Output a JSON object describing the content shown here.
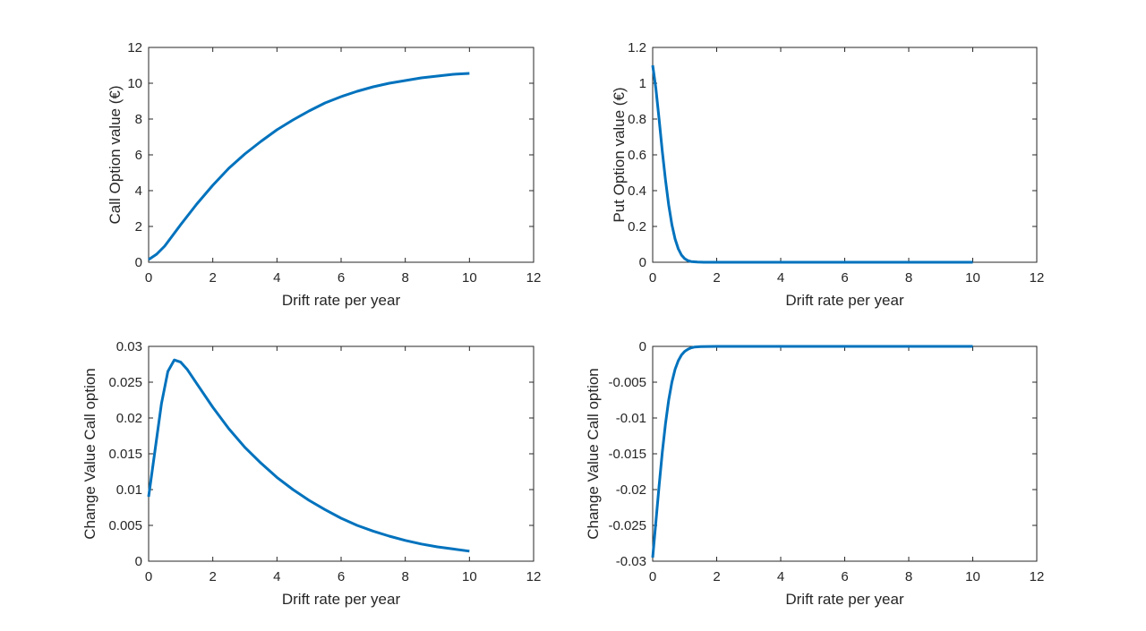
{
  "colors": {
    "line": "#0072BD",
    "axis": "#262626",
    "background": "#ffffff"
  },
  "chart_data": [
    {
      "type": "line",
      "position": "top-left",
      "xlabel": "Drift rate per year",
      "ylabel": "Call Option value (€)",
      "xlim": [
        0,
        12
      ],
      "ylim": [
        0,
        12
      ],
      "xticks": [
        "0",
        "2",
        "4",
        "6",
        "8",
        "10",
        "12"
      ],
      "yticks": [
        "0",
        "2",
        "4",
        "6",
        "8",
        "10",
        "12"
      ],
      "grid": false,
      "series": [
        {
          "x": [
            0,
            0.25,
            0.5,
            0.75,
            1,
            1.5,
            2,
            2.5,
            3,
            3.5,
            4,
            4.5,
            5,
            5.5,
            6,
            6.5,
            7,
            7.5,
            8,
            8.5,
            9,
            9.5,
            10
          ],
          "y": [
            0.15,
            0.45,
            0.9,
            1.5,
            2.1,
            3.25,
            4.3,
            5.25,
            6.05,
            6.75,
            7.4,
            7.95,
            8.45,
            8.9,
            9.25,
            9.55,
            9.8,
            10.0,
            10.15,
            10.3,
            10.4,
            10.5,
            10.55
          ]
        }
      ]
    },
    {
      "type": "line",
      "position": "top-right",
      "xlabel": "Drift rate per year",
      "ylabel": "Put Option value (€)",
      "xlim": [
        0,
        12
      ],
      "ylim": [
        0,
        1.2
      ],
      "xticks": [
        "0",
        "2",
        "4",
        "6",
        "8",
        "10",
        "12"
      ],
      "yticks": [
        "0",
        "0.2",
        "0.4",
        "0.6",
        "0.8",
        "1",
        "1.2"
      ],
      "grid": false,
      "series": [
        {
          "x": [
            0,
            0.1,
            0.2,
            0.3,
            0.4,
            0.5,
            0.6,
            0.7,
            0.8,
            0.9,
            1.0,
            1.1,
            1.2,
            1.4,
            1.6,
            2,
            4,
            6,
            8,
            10
          ],
          "y": [
            1.1,
            0.97,
            0.8,
            0.62,
            0.46,
            0.32,
            0.21,
            0.13,
            0.075,
            0.04,
            0.02,
            0.009,
            0.004,
            0.001,
            0.0003,
            0,
            0,
            0,
            0,
            0
          ]
        }
      ]
    },
    {
      "type": "line",
      "position": "bottom-left",
      "xlabel": "Drift rate per year",
      "ylabel": "Change Value Call option",
      "xlim": [
        0,
        12
      ],
      "ylim": [
        0,
        0.03
      ],
      "xticks": [
        "0",
        "2",
        "4",
        "6",
        "8",
        "10",
        "12"
      ],
      "yticks": [
        "0",
        "0.005",
        "0.01",
        "0.015",
        "0.02",
        "0.025",
        "0.03"
      ],
      "grid": false,
      "series": [
        {
          "x": [
            0,
            0.2,
            0.4,
            0.6,
            0.8,
            1.0,
            1.2,
            1.5,
            2,
            2.5,
            3,
            3.5,
            4,
            4.5,
            5,
            5.5,
            6,
            6.5,
            7,
            7.5,
            8,
            8.5,
            9,
            9.5,
            10
          ],
          "y": [
            0.009,
            0.0155,
            0.022,
            0.0265,
            0.0281,
            0.0278,
            0.0268,
            0.0248,
            0.0215,
            0.0185,
            0.0159,
            0.0137,
            0.0117,
            0.01,
            0.0085,
            0.0072,
            0.006,
            0.005,
            0.0042,
            0.0035,
            0.0029,
            0.0024,
            0.002,
            0.0017,
            0.0014
          ]
        }
      ]
    },
    {
      "type": "line",
      "position": "bottom-right",
      "xlabel": "Drift rate per year",
      "ylabel": "Change Value Call option",
      "xlim": [
        0,
        12
      ],
      "ylim": [
        -0.03,
        0
      ],
      "xticks": [
        "0",
        "2",
        "4",
        "6",
        "8",
        "10",
        "12"
      ],
      "yticks": [
        "-0.03",
        "-0.025",
        "-0.02",
        "-0.015",
        "-0.01",
        "-0.005",
        "0"
      ],
      "grid": false,
      "series": [
        {
          "x": [
            0,
            0.1,
            0.2,
            0.3,
            0.4,
            0.5,
            0.6,
            0.7,
            0.8,
            0.9,
            1.0,
            1.1,
            1.2,
            1.3,
            1.5,
            2,
            4,
            6,
            8,
            10
          ],
          "y": [
            -0.0295,
            -0.0245,
            -0.0195,
            -0.0148,
            -0.0108,
            -0.0075,
            -0.005,
            -0.0032,
            -0.002,
            -0.0012,
            -0.0007,
            -0.0004,
            -0.0002,
            -0.0001,
            -3e-05,
            0,
            0,
            0,
            0,
            0
          ]
        }
      ]
    }
  ]
}
